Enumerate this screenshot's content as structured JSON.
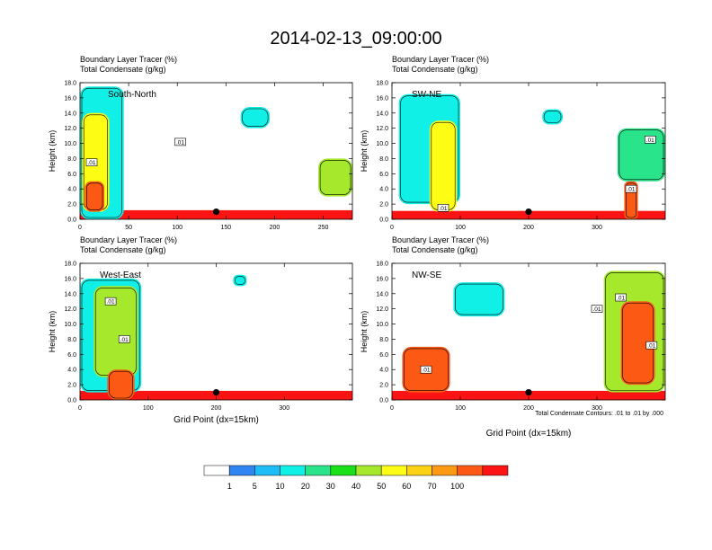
{
  "title": "2014-02-13_09:00:00",
  "panel_labels": {
    "tracer": "Boundary Layer Tracer",
    "tracer_units": "(%)",
    "condensate": "Total Condensate",
    "condensate_units": "(g/kg)"
  },
  "axis": {
    "ylabel": "Height (km)",
    "xlabel": "Grid Point (dx=15km)"
  },
  "contour_note": "Total Condensate Contours: .01 to .01 by .000",
  "contour_label": ".01",
  "colorbar": {
    "colors": [
      "#ffffff",
      "#2f85f2",
      "#1fbdf7",
      "#11f0e6",
      "#2ae48b",
      "#19e019",
      "#a5e82c",
      "#fcfc14",
      "#fcd214",
      "#fc9a14",
      "#fc5a14",
      "#fc1414"
    ],
    "labels": [
      "1",
      "5",
      "10",
      "20",
      "30",
      "40",
      "50",
      "60",
      "70",
      "100"
    ]
  },
  "chart_data": [
    {
      "type": "heatmap",
      "name": "South-North",
      "xlim": [
        0,
        280
      ],
      "ylim": [
        0,
        18
      ],
      "xticks": [
        0,
        50,
        100,
        150,
        200,
        250
      ],
      "yticks": [
        0,
        2,
        4,
        6,
        8,
        10,
        12,
        14,
        16,
        18
      ],
      "marker": {
        "x": 140,
        "y": 1.0
      },
      "contour_labels": [
        {
          "x": 12,
          "y": 7.5
        },
        {
          "x": 103,
          "y": 10.2
        }
      ],
      "features": [
        {
          "x0": 0,
          "x1": 280,
          "y0": 0,
          "y1": 1.2,
          "level": 11
        },
        {
          "x0": 0,
          "x1": 45,
          "y0": 0,
          "y1": 17.5,
          "level": 3
        },
        {
          "x0": 2,
          "x1": 30,
          "y0": 1,
          "y1": 14,
          "level": 7
        },
        {
          "x0": 5,
          "x1": 25,
          "y0": 1,
          "y1": 5,
          "level": 10
        },
        {
          "x0": 245,
          "x1": 280,
          "y0": 3,
          "y1": 8,
          "level": 6
        },
        {
          "x0": 165,
          "x1": 195,
          "y0": 12,
          "y1": 14.8,
          "level": 3
        }
      ]
    },
    {
      "type": "heatmap",
      "name": "SW-NE",
      "xlim": [
        0,
        400
      ],
      "ylim": [
        0,
        18
      ],
      "xticks": [
        0,
        100,
        200,
        300
      ],
      "yticks": [
        0,
        2,
        4,
        6,
        8,
        10,
        12,
        14,
        16,
        18
      ],
      "marker": {
        "x": 200,
        "y": 1.0
      },
      "contour_labels": [
        {
          "x": 75,
          "y": 1.5
        },
        {
          "x": 378,
          "y": 10.5
        },
        {
          "x": 350,
          "y": 4.0
        }
      ],
      "features": [
        {
          "x0": 0,
          "x1": 400,
          "y0": 0,
          "y1": 1.1,
          "level": 11
        },
        {
          "x0": 10,
          "x1": 100,
          "y0": 2,
          "y1": 16.5,
          "level": 3
        },
        {
          "x0": 55,
          "x1": 95,
          "y0": 1,
          "y1": 13,
          "level": 7
        },
        {
          "x0": 330,
          "x1": 400,
          "y0": 5,
          "y1": 12,
          "level": 4
        },
        {
          "x0": 340,
          "x1": 360,
          "y0": 0,
          "y1": 5,
          "level": 10
        },
        {
          "x0": 220,
          "x1": 250,
          "y0": 12.5,
          "y1": 14.5,
          "level": 3
        }
      ]
    },
    {
      "type": "heatmap",
      "name": "West-East",
      "xlim": [
        0,
        400
      ],
      "ylim": [
        0,
        18
      ],
      "xticks": [
        0,
        100,
        200,
        300
      ],
      "yticks": [
        0,
        2,
        4,
        6,
        8,
        10,
        12,
        14,
        16,
        18
      ],
      "marker": {
        "x": 200,
        "y": 1.0
      },
      "contour_labels": [
        {
          "x": 45,
          "y": 13.0
        },
        {
          "x": 65,
          "y": 8.0
        }
      ],
      "features": [
        {
          "x0": 0,
          "x1": 400,
          "y0": 0,
          "y1": 1.2,
          "level": 11
        },
        {
          "x0": 0,
          "x1": 90,
          "y0": 1,
          "y1": 16,
          "level": 3
        },
        {
          "x0": 20,
          "x1": 85,
          "y0": 3,
          "y1": 15,
          "level": 6
        },
        {
          "x0": 40,
          "x1": 80,
          "y0": 0,
          "y1": 4,
          "level": 10
        },
        {
          "x0": 225,
          "x1": 245,
          "y0": 15,
          "y1": 16.5,
          "level": 3
        }
      ]
    },
    {
      "type": "heatmap",
      "name": "NW-SE",
      "xlim": [
        0,
        400
      ],
      "ylim": [
        0,
        18
      ],
      "xticks": [
        0,
        100,
        200,
        300
      ],
      "yticks": [
        0,
        2,
        4,
        6,
        8,
        10,
        12,
        14,
        16,
        18
      ],
      "marker": {
        "x": 200,
        "y": 1.0
      },
      "contour_labels": [
        {
          "x": 50,
          "y": 4.0
        },
        {
          "x": 300,
          "y": 12.0
        },
        {
          "x": 335,
          "y": 13.5
        },
        {
          "x": 380,
          "y": 7.2
        }
      ],
      "features": [
        {
          "x0": 0,
          "x1": 400,
          "y0": 0,
          "y1": 1.2,
          "level": 11
        },
        {
          "x0": 15,
          "x1": 85,
          "y0": 1,
          "y1": 7,
          "level": 10
        },
        {
          "x0": 90,
          "x1": 165,
          "y0": 11,
          "y1": 15.5,
          "level": 3
        },
        {
          "x0": 310,
          "x1": 400,
          "y0": 1,
          "y1": 17,
          "level": 6
        },
        {
          "x0": 335,
          "x1": 385,
          "y0": 2,
          "y1": 13,
          "level": 10
        }
      ]
    }
  ]
}
